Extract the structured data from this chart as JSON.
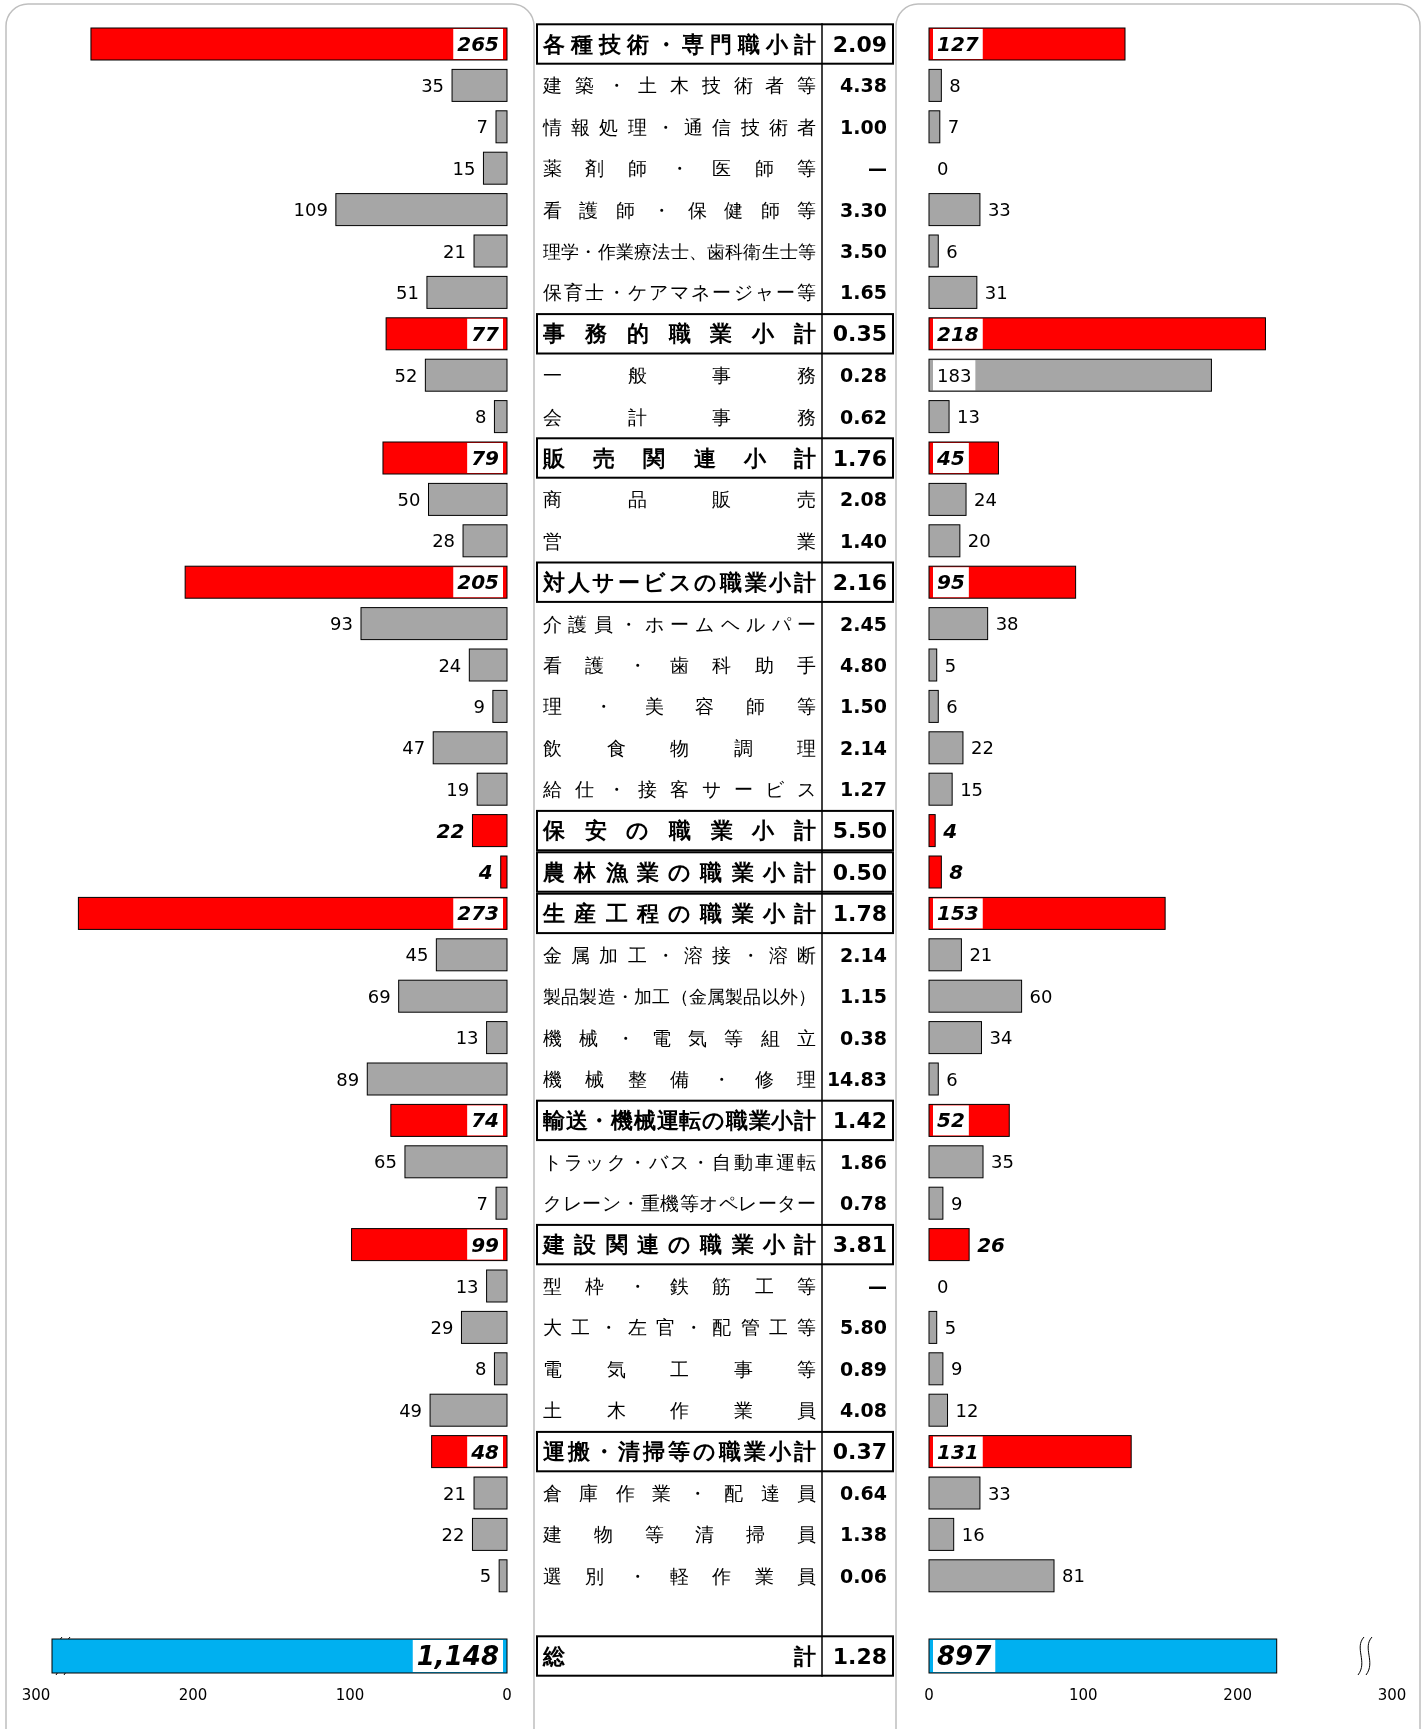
{
  "chart_data": [
    {
      "type": "bar",
      "orientation": "horizontal",
      "categories": [
        "各種技術・専門職小計",
        "建築・土木技術者等",
        "情報処理・通信技術者",
        "薬剤師・医師等",
        "看護師・保健師等",
        "理学・作業療法士、歯科衛生士等",
        "保育士・ケアマネージャー等",
        "事務的職業小計",
        "一般事務",
        "会計事務",
        "販売関連小計",
        "商品販売",
        "営業",
        "対人サービスの職業小計",
        "介護員・ホームヘルパー",
        "看護・歯科助手",
        "理・美容師等",
        "飲食物調理",
        "給仕・接客サービス",
        "保安の職業小計",
        "農林漁業の職業小計",
        "生産工程の職業小計",
        "金属加工・溶接・溶断",
        "製品製造・加工（金属製品以外）",
        "機械・電気等組立",
        "機械整備・修理",
        "輸送・機械運転の職業小計",
        "トラック・バス・自動車運転",
        "クレーン・重機等オペレーター",
        "建設関連の職業小計",
        "型枠・鉄筋工等",
        "大工・左官・配管工等",
        "電気工事等",
        "土木作業員",
        "運搬・清掃等の職業小計",
        "倉庫作業・配達員",
        "建物等清掃員",
        "選別・軽作業員"
      ],
      "series": [
        {
          "color": "#ff0000",
          "values": [
            265,
            null,
            null,
            null,
            null,
            null,
            null,
            77,
            null,
            null,
            79,
            null,
            null,
            205,
            null,
            null,
            null,
            null,
            null,
            22,
            4,
            273,
            null,
            null,
            null,
            null,
            74,
            null,
            null,
            99,
            null,
            null,
            null,
            null,
            48,
            null,
            null,
            null
          ]
        },
        {
          "color": "#a6a6a6",
          "values": [
            null,
            35,
            7,
            15,
            109,
            21,
            51,
            null,
            52,
            8,
            null,
            50,
            28,
            null,
            93,
            24,
            9,
            47,
            19,
            null,
            null,
            null,
            45,
            69,
            13,
            89,
            null,
            65,
            7,
            null,
            13,
            29,
            8,
            49,
            null,
            21,
            22,
            5
          ]
        }
      ],
      "xlim": [
        300,
        0
      ],
      "xticks": [
        300,
        200,
        100,
        0
      ],
      "data_labels": true
    },
    {
      "type": "other",
      "annotations": [
        "2.09",
        "4.38",
        "1.00",
        "—",
        "3.30",
        "3.50",
        "1.65",
        "0.35",
        "0.28",
        "0.62",
        "1.76",
        "2.08",
        "1.40",
        "2.16",
        "2.45",
        "4.80",
        "1.50",
        "2.14",
        "1.27",
        "5.50",
        "0.50",
        "1.78",
        "2.14",
        "1.15",
        "0.38",
        "14.83",
        "1.42",
        "1.86",
        "0.78",
        "3.81",
        "—",
        "5.80",
        "0.89",
        "4.08",
        "0.37",
        "0.64",
        "1.38",
        "0.06",
        "1.28"
      ]
    },
    {
      "type": "bar",
      "orientation": "horizontal",
      "categories": [
        null,
        null,
        null,
        null,
        null,
        null,
        null,
        null,
        null,
        null,
        null,
        null,
        null,
        null,
        null,
        null,
        null,
        null,
        null,
        null,
        null,
        null,
        null,
        null,
        null,
        null,
        null,
        null,
        null,
        null,
        null,
        null,
        null,
        null,
        null,
        null,
        null,
        null
      ],
      "series": [
        {
          "color": "#ff0000",
          "values": [
            127,
            null,
            null,
            null,
            null,
            null,
            null,
            218,
            null,
            null,
            45,
            null,
            null,
            95,
            null,
            null,
            null,
            null,
            null,
            4,
            8,
            153,
            null,
            null,
            null,
            null,
            52,
            null,
            null,
            26,
            null,
            null,
            null,
            null,
            131,
            null,
            null,
            null
          ]
        },
        {
          "color": "#a6a6a6",
          "values": [
            null,
            8,
            7,
            0,
            33,
            6,
            31,
            null,
            183,
            13,
            null,
            24,
            20,
            null,
            38,
            5,
            6,
            22,
            15,
            null,
            null,
            null,
            21,
            60,
            34,
            6,
            null,
            35,
            9,
            null,
            0,
            5,
            9,
            12,
            null,
            33,
            16,
            81
          ]
        }
      ],
      "xlim": [
        0,
        300
      ],
      "xticks": [
        0,
        100,
        200,
        300
      ],
      "data_labels": true
    },
    {
      "type": "bar",
      "orientation": "horizontal",
      "categories": [
        "総計"
      ],
      "values": [
        1148
      ],
      "color": "#00b0f0",
      "value_labels": [
        "1,148"
      ]
    },
    {
      "type": "bar",
      "orientation": "horizontal",
      "categories": [
        null
      ],
      "values": [
        897
      ],
      "color": "#00b0f0",
      "value_labels": [
        "897"
      ]
    }
  ]
}
